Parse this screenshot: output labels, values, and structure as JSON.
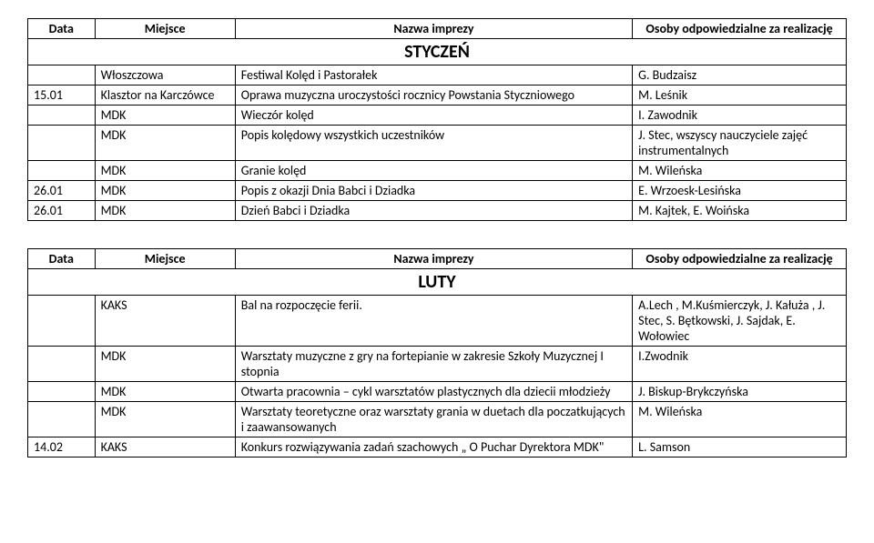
{
  "headers": {
    "data": "Data",
    "miejsce": "Miejsce",
    "nazwa": "Nazwa imprezy",
    "osoby": "Osoby odpowiedzialne za realizację"
  },
  "table1": {
    "month": "STYCZEŃ",
    "rows": [
      {
        "data": "",
        "miejsce": "Włoszczowa",
        "nazwa": "Festiwal Kolęd i Pastorałek",
        "osoby": "G. Budzaisz"
      },
      {
        "data": "15.01",
        "miejsce": "Klasztor na Karczówce",
        "nazwa": "Oprawa muzyczna uroczystości rocznicy Powstania Styczniowego",
        "osoby": "M. Leśnik"
      },
      {
        "data": "",
        "miejsce": "MDK",
        "nazwa": "Wieczór kolęd",
        "osoby": "I. Zawodnik"
      },
      {
        "data": "",
        "miejsce": "MDK",
        "nazwa": "Popis kolędowy wszystkich uczestników",
        "osoby": "J. Stec, wszyscy nauczyciele zajęć instrumentalnych"
      },
      {
        "data": "",
        "miejsce": "MDK",
        "nazwa": "Granie kolęd",
        "osoby": "M. Wileńska"
      },
      {
        "data": "26.01",
        "miejsce": "MDK",
        "nazwa": "Popis z okazji Dnia Babci i Dziadka",
        "osoby": "E. Wrzoesk-Lesińska"
      },
      {
        "data": "26.01",
        "miejsce": "MDK",
        "nazwa": "Dzień Babci i Dziadka",
        "osoby": "M. Kajtek, E. Woińska"
      }
    ]
  },
  "table2": {
    "month": "LUTY",
    "rows": [
      {
        "data": "",
        "miejsce": "KAKS",
        "nazwa": "Bal na rozpoczęcie ferii.",
        "osoby": "A.Lech , M.Kuśmierczyk, J. Kałuża , J. Stec, S. Bętkowski, J. Sajdak,        E. Wołowiec"
      },
      {
        "data": "",
        "miejsce": "MDK",
        "nazwa": "Warsztaty muzyczne z gry na fortepianie w zakresie Szkoły Muzycznej I stopnia",
        "osoby": "I.Zwodnik"
      },
      {
        "data": "",
        "miejsce": "MDK",
        "nazwa": "Otwarta pracownia – cykl warsztatów plastycznych dla dziecii młodzieży",
        "osoby": "J. Biskup-Brykczyńska"
      },
      {
        "data": "",
        "miejsce": "MDK",
        "nazwa": "Warsztaty teoretyczne oraz warsztaty grania w duetach dla poczatkujących i zaawansowanych",
        "osoby": "M. Wileńska"
      },
      {
        "data": "14.02",
        "miejsce": "KAKS",
        "nazwa": "Konkurs rozwiązywania zadań szachowych „ O Puchar Dyrektora MDK\"",
        "osoby": "L. Samson"
      }
    ]
  }
}
